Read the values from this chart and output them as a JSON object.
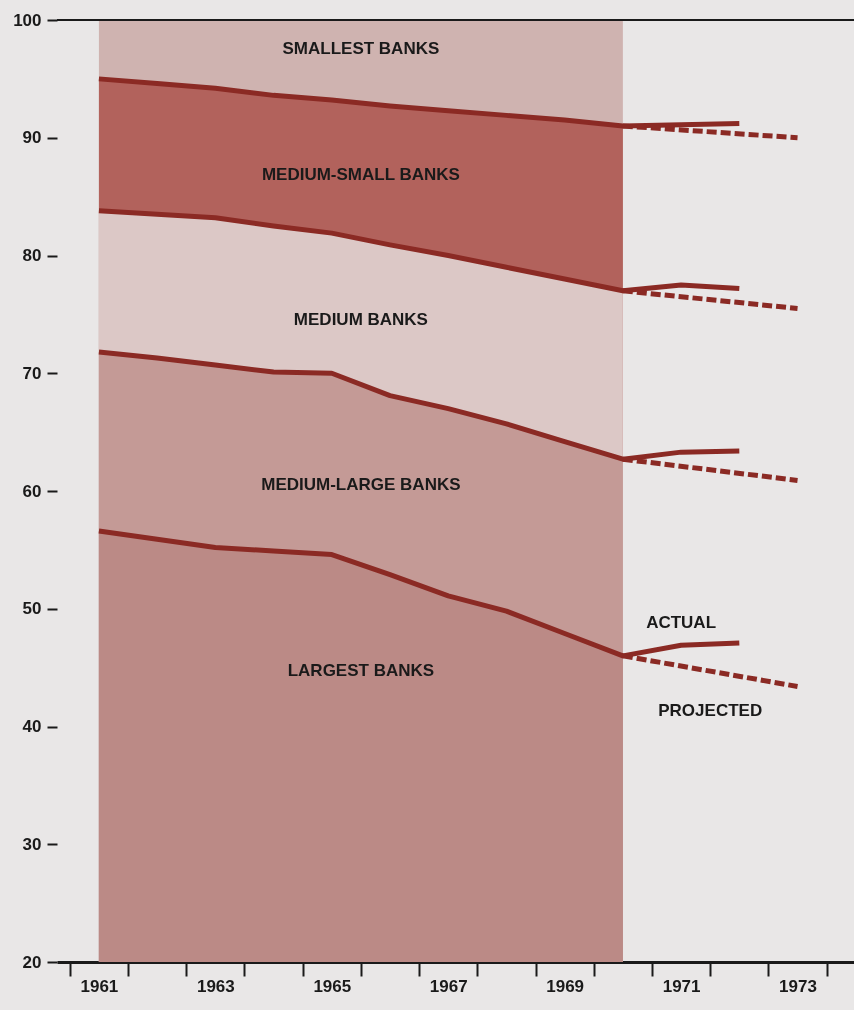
{
  "chart_data": {
    "type": "area",
    "xlim": [
      1960.28,
      1973.97
    ],
    "xticks": [
      {
        "value": 1960.5,
        "label": null
      },
      {
        "value": 1961,
        "label": "1961"
      },
      {
        "value": 1961.5,
        "label": null
      },
      {
        "value": 1962.5,
        "label": null
      },
      {
        "value": 1963,
        "label": "1963"
      },
      {
        "value": 1963.5,
        "label": null
      },
      {
        "value": 1964.5,
        "label": null
      },
      {
        "value": 1965,
        "label": "1965"
      },
      {
        "value": 1965.5,
        "label": null
      },
      {
        "value": 1966.5,
        "label": null
      },
      {
        "value": 1967,
        "label": "1967"
      },
      {
        "value": 1967.5,
        "label": null
      },
      {
        "value": 1968.5,
        "label": null
      },
      {
        "value": 1969,
        "label": "1969"
      },
      {
        "value": 1969.5,
        "label": null
      },
      {
        "value": 1970.5,
        "label": null
      },
      {
        "value": 1971,
        "label": "1971"
      },
      {
        "value": 1971.5,
        "label": null
      },
      {
        "value": 1972.5,
        "label": null
      },
      {
        "value": 1973,
        "label": "1973"
      },
      {
        "value": 1973.5,
        "label": null
      }
    ],
    "ylim": [
      20,
      100
    ],
    "yticks": [
      20,
      30,
      40,
      50,
      60,
      70,
      80,
      90,
      100
    ],
    "grid": false,
    "marker": "none",
    "ref_lines": [
      {
        "axis": "y",
        "value": 100,
        "label": null,
        "color": "#1a1a1a"
      }
    ],
    "annotations": [
      {
        "text": "ACTUAL",
        "x": 1971,
        "y": 46.9
      },
      {
        "text": "PROJECTED",
        "x": 1971.5,
        "y": 44.7
      }
    ],
    "series": [
      {
        "name": "SMALLEST BANKS",
        "color": "#cfb3b0",
        "x": [
          1961,
          1962,
          1963,
          1964,
          1965,
          1966,
          1967,
          1968,
          1969,
          1970
        ],
        "values": [
          100,
          100,
          100,
          100,
          100,
          100,
          100,
          100,
          100,
          100
        ]
      },
      {
        "name": "MEDIUM-SMALL BANKS",
        "color": "#b2625c",
        "x": [
          1961,
          1962,
          1963,
          1964,
          1965,
          1966,
          1967,
          1968,
          1969,
          1970
        ],
        "values": [
          95.0,
          94.6,
          94.2,
          93.6,
          93.2,
          92.7,
          92.3,
          91.9,
          91.5,
          91.0
        ]
      },
      {
        "name": "MEDIUM BANKS",
        "color": "#dcc8c6",
        "x": [
          1961,
          1962,
          1963,
          1964,
          1965,
          1966,
          1967,
          1968,
          1969,
          1970
        ],
        "values": [
          83.8,
          83.5,
          83.2,
          82.5,
          81.9,
          80.9,
          80.0,
          79.0,
          78.0,
          77.0
        ]
      },
      {
        "name": "MEDIUM-LARGE BANKS",
        "color": "#c49a96",
        "x": [
          1961,
          1962,
          1963,
          1964,
          1965,
          1966,
          1967,
          1968,
          1969,
          1970
        ],
        "values": [
          71.8,
          71.3,
          70.7,
          70.1,
          70.0,
          68.1,
          67.0,
          65.7,
          64.2,
          62.7
        ]
      },
      {
        "name": "LARGEST BANKS",
        "color": "#bb8a86",
        "x": [
          1961,
          1962,
          1963,
          1964,
          1965,
          1966,
          1967,
          1968,
          1969,
          1970
        ],
        "values": [
          56.6,
          55.9,
          55.2,
          54.9,
          54.6,
          52.9,
          51.1,
          49.8,
          47.9,
          46.0
        ]
      },
      {
        "type": "line",
        "line_style": "solid",
        "color": "#8b2a24",
        "x": [
          1961,
          1962,
          1963,
          1964,
          1965,
          1966,
          1967,
          1968,
          1969,
          1970,
          1971,
          1972
        ],
        "values": [
          95.0,
          94.6,
          94.2,
          93.6,
          93.2,
          92.7,
          92.3,
          91.9,
          91.5,
          91.0,
          91.1,
          91.2
        ]
      },
      {
        "type": "line",
        "line_style": "solid",
        "color": "#8b2a24",
        "x": [
          1961,
          1962,
          1963,
          1964,
          1965,
          1966,
          1967,
          1968,
          1969,
          1970,
          1971,
          1972
        ],
        "values": [
          83.8,
          83.5,
          83.2,
          82.5,
          81.9,
          80.9,
          80.0,
          79.0,
          78.0,
          77.0,
          77.5,
          77.2
        ]
      },
      {
        "type": "line",
        "line_style": "solid",
        "color": "#8b2a24",
        "x": [
          1961,
          1962,
          1963,
          1964,
          1965,
          1966,
          1967,
          1968,
          1969,
          1970,
          1971,
          1972
        ],
        "values": [
          71.8,
          71.3,
          70.7,
          70.1,
          70.0,
          68.1,
          67.0,
          65.7,
          64.2,
          62.7,
          63.3,
          63.4
        ]
      },
      {
        "type": "line",
        "line_style": "solid",
        "color": "#8b2a24",
        "x": [
          1961,
          1962,
          1963,
          1964,
          1965,
          1966,
          1967,
          1968,
          1969,
          1970,
          1971,
          1972
        ],
        "values": [
          56.6,
          55.9,
          55.2,
          54.9,
          54.6,
          52.9,
          51.1,
          49.8,
          47.9,
          46.0,
          46.9,
          47.1
        ]
      },
      {
        "type": "line",
        "line_style": "dashed",
        "color": "#8b2a24",
        "x": [
          1970,
          1973
        ],
        "values": [
          91.0,
          90.0
        ]
      },
      {
        "type": "line",
        "line_style": "dashed",
        "color": "#8b2a24",
        "x": [
          1970,
          1973
        ],
        "values": [
          77.0,
          75.5
        ]
      },
      {
        "type": "line",
        "line_style": "dashed",
        "color": "#8b2a24",
        "x": [
          1970,
          1973
        ],
        "values": [
          62.7,
          60.9
        ]
      },
      {
        "type": "line",
        "line_style": "dashed",
        "color": "#8b2a24",
        "x": [
          1970,
          1973
        ],
        "values": [
          46.0,
          43.4
        ]
      }
    ]
  }
}
